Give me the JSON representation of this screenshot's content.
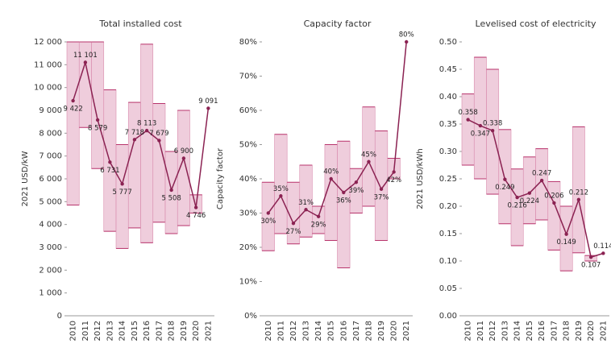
{
  "chart_data": [
    {
      "type": "line",
      "title": "Total installed cost",
      "ylabel": "2021 USD/kW",
      "categories": [
        "2010",
        "2011",
        "2012",
        "2013",
        "2014",
        "2015",
        "2016",
        "2017",
        "2018",
        "2019",
        "2020",
        "2021"
      ],
      "values": [
        9422,
        11101,
        8579,
        6731,
        5777,
        7718,
        8113,
        7679,
        5508,
        6900,
        4746,
        9091
      ],
      "value_labels": [
        "9 422",
        "11 101",
        "8 579",
        "6 731",
        "5 777",
        "7 718",
        "8 113",
        "7 679",
        "5 508",
        "6 900",
        "4 746",
        "9 091"
      ],
      "low": [
        4850,
        8250,
        6450,
        3700,
        2950,
        3850,
        3200,
        4100,
        3600,
        3950,
        4500,
        null
      ],
      "high": [
        12000,
        12000,
        12000,
        9900,
        7500,
        9350,
        11900,
        9300,
        7200,
        9000,
        5300,
        null
      ],
      "color": "#8b2252",
      "range_color": "#e9bcd0",
      "ylim": [
        0,
        12000
      ],
      "yticks": [
        0,
        {
          "value": 1000,
          "label": "1 000"
        },
        {
          "value": 2000,
          "label": "2 000"
        },
        {
          "value": 3000,
          "label": "3 000"
        },
        {
          "value": 4000,
          "label": "4 000"
        },
        {
          "value": 5000,
          "label": "5 000"
        },
        {
          "value": 6000,
          "label": "6 000"
        },
        {
          "value": 7000,
          "label": "7 000"
        },
        {
          "value": 8000,
          "label": "8 000"
        },
        {
          "value": 9000,
          "label": "9 000"
        },
        {
          "value": 10000,
          "label": "10 000"
        },
        {
          "value": 11000,
          "label": "11 000"
        },
        {
          "value": 12000,
          "label": "12 000"
        }
      ]
    },
    {
      "type": "line",
      "title": "Capacity factor",
      "ylabel": "Capacity factor",
      "categories": [
        "2010",
        "2011",
        "2012",
        "2013",
        "2014",
        "2015",
        "2016",
        "2017",
        "2018",
        "2019",
        "2020",
        "2021"
      ],
      "values": [
        30,
        35,
        27,
        31,
        29,
        40,
        36,
        39,
        45,
        37,
        42,
        80
      ],
      "value_labels": [
        "30%",
        "35%",
        "27%",
        "31%",
        "29%",
        "40%",
        "36%",
        "39%",
        "45%",
        "37%",
        "42%",
        "80%"
      ],
      "low": [
        19,
        24,
        21,
        23,
        24,
        22,
        14,
        30,
        32,
        22,
        40,
        null
      ],
      "high": [
        39,
        53,
        39,
        44,
        32,
        50,
        51,
        43,
        61,
        54,
        46,
        null
      ],
      "color": "#8b2252",
      "range_color": "#e9bcd0",
      "ylim": [
        0,
        80
      ],
      "yticks": [
        {
          "value": 0,
          "label": "0%"
        },
        {
          "value": 10,
          "label": "10%"
        },
        {
          "value": 20,
          "label": "20%"
        },
        {
          "value": 30,
          "label": "30%"
        },
        {
          "value": 40,
          "label": "40%"
        },
        {
          "value": 50,
          "label": "50%"
        },
        {
          "value": 60,
          "label": "60%"
        },
        {
          "value": 70,
          "label": "70%"
        },
        {
          "value": 80,
          "label": "80%"
        }
      ]
    },
    {
      "type": "line",
      "title": "Levelised cost of electricity",
      "ylabel": "2021 USD/kWh",
      "categories": [
        "2010",
        "2011",
        "2012",
        "2013",
        "2014",
        "2015",
        "2016",
        "2017",
        "2018",
        "2019",
        "2020",
        "2021"
      ],
      "values": [
        0.358,
        0.347,
        0.338,
        0.249,
        0.216,
        0.224,
        0.247,
        0.206,
        0.149,
        0.212,
        0.107,
        0.114
      ],
      "low": [
        0.275,
        0.25,
        0.222,
        0.168,
        0.128,
        0.168,
        0.175,
        0.12,
        0.082,
        0.115,
        0.1,
        null
      ],
      "high": [
        0.405,
        0.472,
        0.45,
        0.34,
        0.268,
        0.29,
        0.305,
        0.245,
        0.2,
        0.345,
        0.11,
        null
      ],
      "color": "#8b2252",
      "range_color": "#e9bcd0",
      "ylim": [
        0,
        0.5
      ],
      "yticks": [
        {
          "value": 0,
          "label": "0.00"
        },
        0.05,
        {
          "value": 0.1,
          "label": "0.10"
        },
        0.15,
        {
          "value": 0.2,
          "label": "0.20"
        },
        0.25,
        {
          "value": 0.3,
          "label": "0.30"
        },
        0.35,
        {
          "value": 0.4,
          "label": "0.40"
        },
        0.45,
        {
          "value": 0.5,
          "label": "0.50"
        }
      ]
    }
  ]
}
